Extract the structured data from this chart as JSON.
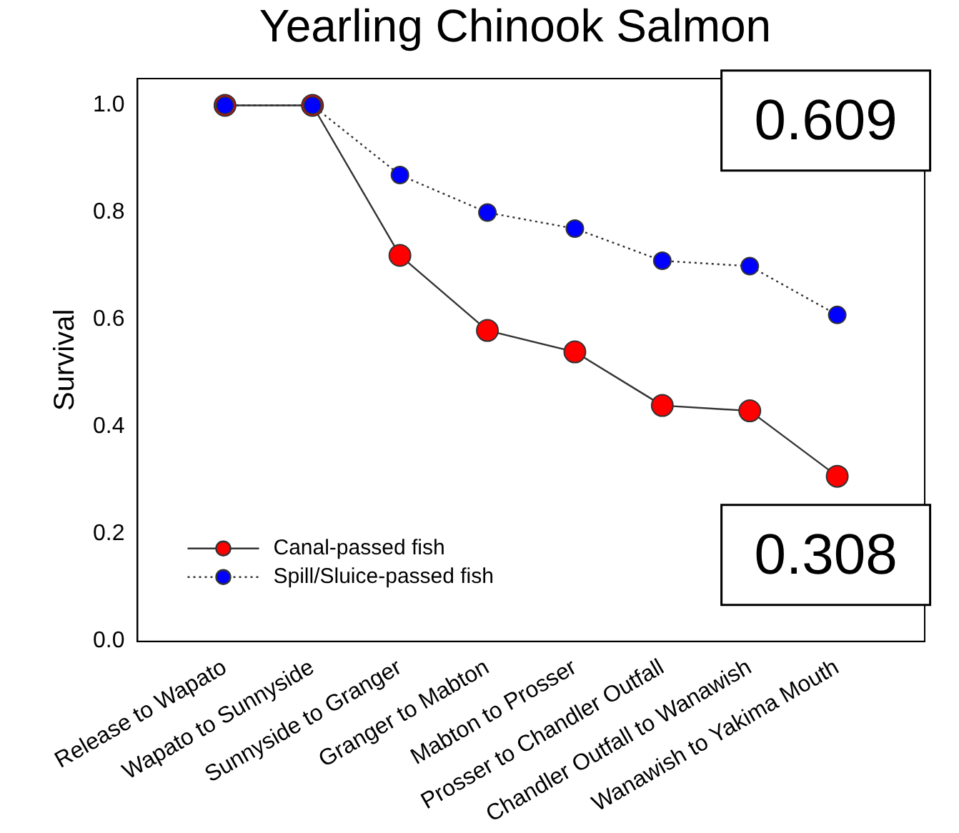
{
  "chart_data": {
    "type": "line",
    "title": "Yearling Chinook Salmon",
    "ylabel": "Survival",
    "categories": [
      "Release to Wapato",
      "Wapato to Sunnyside",
      "Sunnyside to Granger",
      "Granger to Mabton",
      "Mabton to Prosser",
      "Prosser to Chandler Outfall",
      "Chandler Outfall to Wanawish",
      "Wanawish to Yakima Mouth"
    ],
    "series": [
      {
        "name": "Canal-passed fish",
        "color": "#ff0000",
        "line_style": "solid",
        "values": [
          1.0,
          1.0,
          0.72,
          0.58,
          0.54,
          0.44,
          0.43,
          0.308
        ]
      },
      {
        "name": "Spill/Sluice-passed fish",
        "color": "#0000ff",
        "line_style": "dotted",
        "values": [
          1.0,
          1.0,
          0.87,
          0.8,
          0.77,
          0.71,
          0.7,
          0.609
        ]
      }
    ],
    "ylim": [
      0,
      1.05
    ],
    "yticks": [
      {
        "value": 0,
        "label": "0.0"
      },
      {
        "value": 0.2,
        "label": "0.2"
      },
      {
        "value": 0.4,
        "label": "0.4"
      },
      {
        "value": 0.6,
        "label": "0.6"
      },
      {
        "value": 0.8,
        "label": "0.8"
      },
      {
        "value": 1,
        "label": "1.0"
      }
    ],
    "marker": "circle",
    "grid": false,
    "legend": "bottom left",
    "annotations": [
      {
        "text": "0.609",
        "x": "Wanawish to Yakima Mouth",
        "y": 0.609
      },
      {
        "text": "0.308",
        "x": "Wanawish to Yakima Mouth",
        "y": 0.308
      }
    ]
  }
}
